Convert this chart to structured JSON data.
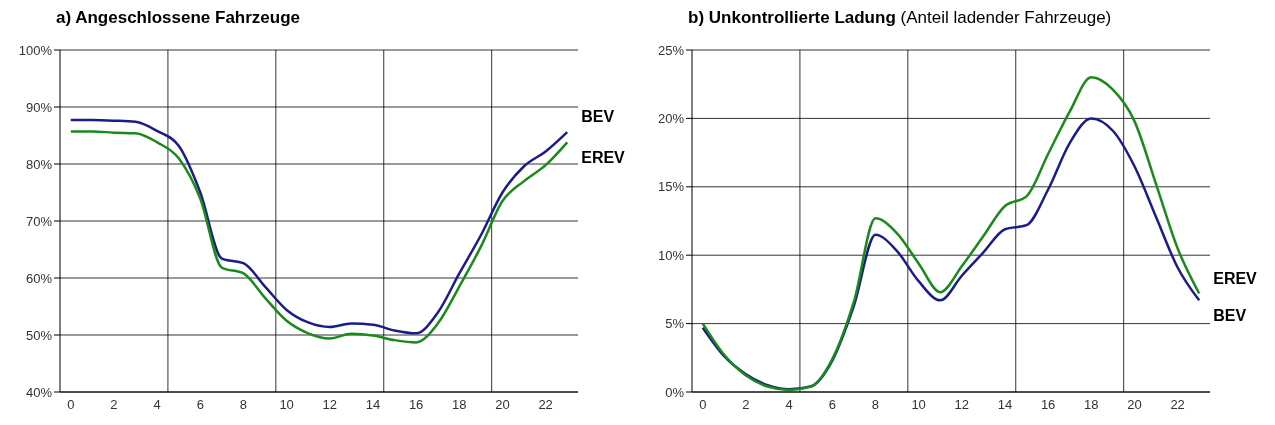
{
  "chart_data": [
    {
      "type": "line",
      "title": "a) Angeschlossene Fahrzeuge",
      "x": [
        0,
        1,
        2,
        3,
        4,
        5,
        6,
        7,
        8,
        9,
        10,
        11,
        12,
        13,
        14,
        15,
        16,
        17,
        18,
        19,
        20,
        21,
        22,
        23
      ],
      "series": [
        {
          "name": "BEV",
          "color": "#1c1c88",
          "values": [
            87.7,
            87.7,
            87.6,
            87.4,
            85.8,
            83.2,
            75,
            63.4,
            62.6,
            58.5,
            54.4,
            52.2,
            51.4,
            52,
            51.8,
            50.8,
            50.3,
            53.9,
            60.8,
            67.5,
            75,
            79.6,
            82.2,
            85.6
          ]
        },
        {
          "name": "EREV",
          "color": "#1a8a1a",
          "values": [
            85.7,
            85.7,
            85.5,
            85.4,
            83.8,
            81,
            73.9,
            61.8,
            60.8,
            56.5,
            52.5,
            50.3,
            49.4,
            50.2,
            49.9,
            49.1,
            48.7,
            52,
            58.5,
            65.5,
            73.5,
            77,
            79.8,
            83.8
          ]
        }
      ],
      "xlim": [
        -0.5,
        23.5
      ],
      "xticks": [
        0,
        2,
        4,
        {
          "value": 4.5,
          "label": null
        },
        6,
        8,
        {
          "value": 9.5,
          "label": null
        },
        10,
        12,
        14,
        {
          "value": 14.5,
          "label": null
        },
        16,
        18,
        {
          "value": 19.5,
          "label": null
        },
        20,
        22
      ],
      "ylim": [
        40,
        100
      ],
      "yticks": [
        {
          "value": 40,
          "label": "40%"
        },
        {
          "value": 50,
          "label": "50%"
        },
        {
          "value": 60,
          "label": "60%"
        },
        {
          "value": 70,
          "label": "70%"
        },
        {
          "value": 80,
          "label": "80%"
        },
        {
          "value": 90,
          "label": "90%"
        },
        {
          "value": 100,
          "label": "100%"
        }
      ],
      "grid": true,
      "legend": false,
      "marker": "none",
      "line_style": "solid"
    },
    {
      "type": "line",
      "title": "b) Unkontrollierte Ladung",
      "subtitle": "(Anteil ladender Fahrzeuge)",
      "x": [
        0,
        1,
        2,
        3,
        4,
        5,
        6,
        7,
        8,
        9,
        10,
        11,
        12,
        13,
        14,
        15,
        16,
        17,
        18,
        19,
        20,
        21,
        22,
        23
      ],
      "series": [
        {
          "name": "BEV",
          "color": "#1c1c88",
          "values": [
            4.7,
            2.6,
            1.3,
            0.5,
            0.2,
            0.4,
            2.3,
            6.3,
            11.5,
            10.3,
            8.1,
            6.7,
            8.5,
            10.2,
            11.9,
            12.2,
            14.8,
            18.2,
            20,
            19.1,
            16.5,
            12.8,
            9.1,
            6.7
          ]
        },
        {
          "name": "EREV",
          "color": "#1a8a1a",
          "values": [
            5,
            2.7,
            1.2,
            0.4,
            0.15,
            0.4,
            2.4,
            6.6,
            12.7,
            11.6,
            9.4,
            7.3,
            9.2,
            11.4,
            13.6,
            14.3,
            17.4,
            20.5,
            23,
            22.1,
            19.8,
            15.2,
            10.5,
            7.2
          ]
        }
      ],
      "xlim": [
        -0.5,
        23.5
      ],
      "xticks": [
        0,
        2,
        4,
        {
          "value": 4.5,
          "label": null
        },
        6,
        8,
        {
          "value": 9.5,
          "label": null
        },
        10,
        12,
        14,
        {
          "value": 14.5,
          "label": null
        },
        16,
        18,
        {
          "value": 19.5,
          "label": null
        },
        20,
        22
      ],
      "ylim": [
        0,
        25
      ],
      "yticks": [
        {
          "value": 0,
          "label": "0%"
        },
        {
          "value": 5,
          "label": "5%"
        },
        {
          "value": 10,
          "label": "10%"
        },
        {
          "value": 15,
          "label": "15%"
        },
        {
          "value": 20,
          "label": "20%"
        },
        {
          "value": 25,
          "label": "25%"
        }
      ],
      "grid": true,
      "legend": false,
      "marker": "none",
      "line_style": "solid"
    }
  ]
}
